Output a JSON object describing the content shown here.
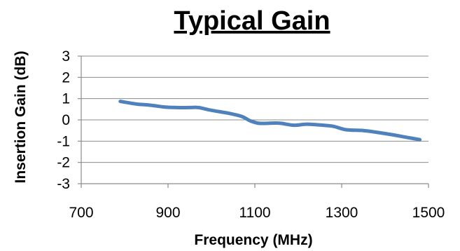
{
  "chart_data": {
    "type": "line",
    "title": "Typical Gain",
    "xlabel": "Frequency (MHz)",
    "ylabel": "Insertion Gain (dB)",
    "xlim": [
      700,
      1500
    ],
    "ylim": [
      -3,
      3
    ],
    "xticks": [
      700,
      900,
      1100,
      1300,
      1500
    ],
    "yticks": [
      3,
      2,
      1,
      0,
      -1,
      -2,
      -3
    ],
    "grid": true,
    "legend": "none",
    "series": [
      {
        "color": "#4f81bd",
        "x": [
          790,
          810,
          830,
          860,
          890,
          920,
          950,
          970,
          1000,
          1040,
          1070,
          1090,
          1110,
          1140,
          1160,
          1190,
          1220,
          1250,
          1280,
          1310,
          1350,
          1380,
          1420,
          1450,
          1480
        ],
        "y": [
          0.87,
          0.8,
          0.74,
          0.69,
          0.61,
          0.58,
          0.58,
          0.58,
          0.45,
          0.31,
          0.16,
          -0.05,
          -0.16,
          -0.15,
          -0.16,
          -0.25,
          -0.2,
          -0.24,
          -0.3,
          -0.46,
          -0.5,
          -0.58,
          -0.71,
          -0.82,
          -0.93
        ]
      }
    ]
  }
}
